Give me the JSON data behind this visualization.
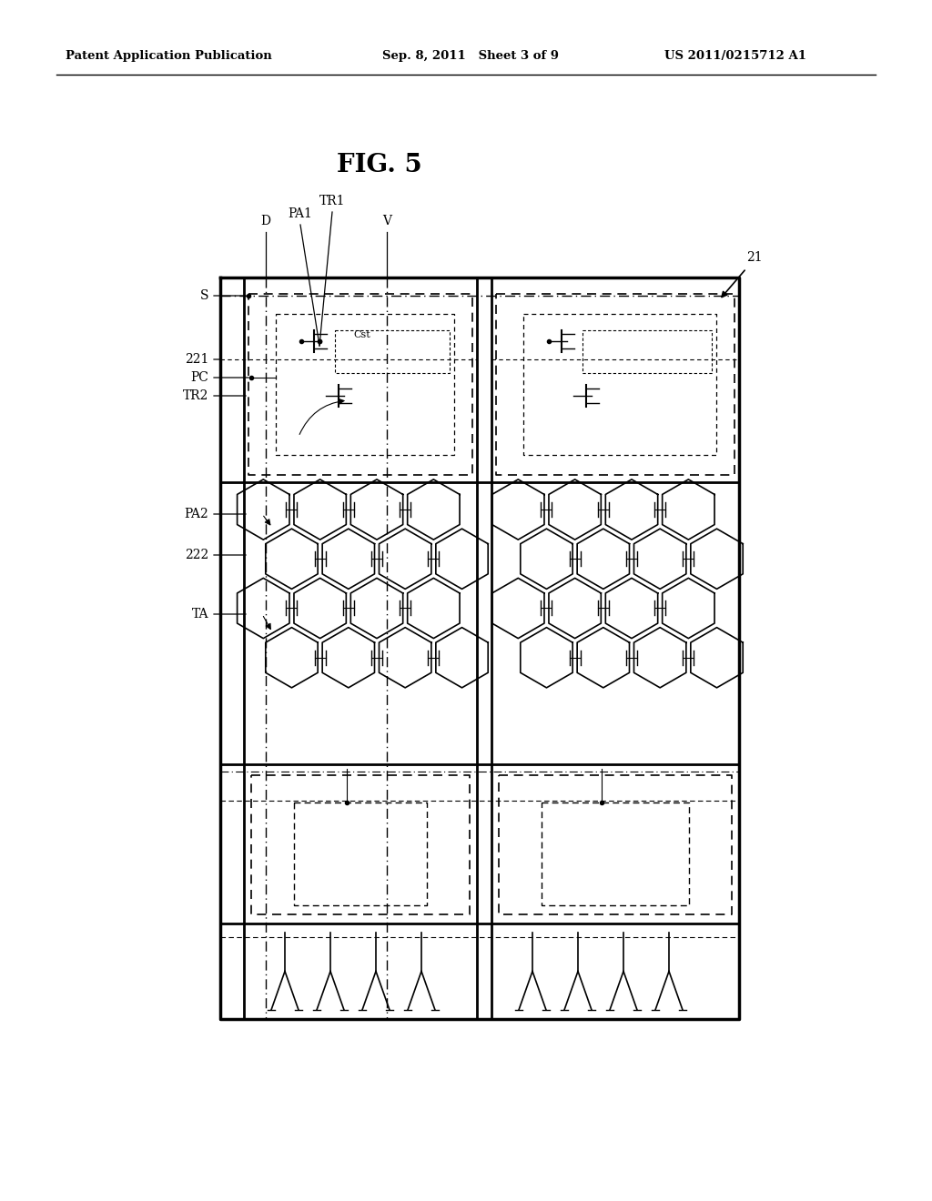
{
  "bg_color": "#ffffff",
  "header_left": "Patent Application Publication",
  "header_mid": "Sep. 8, 2011   Sheet 3 of 9",
  "header_right": "US 2011/0215712 A1",
  "fig_title": "FIG. 5",
  "line_color": "#000000"
}
